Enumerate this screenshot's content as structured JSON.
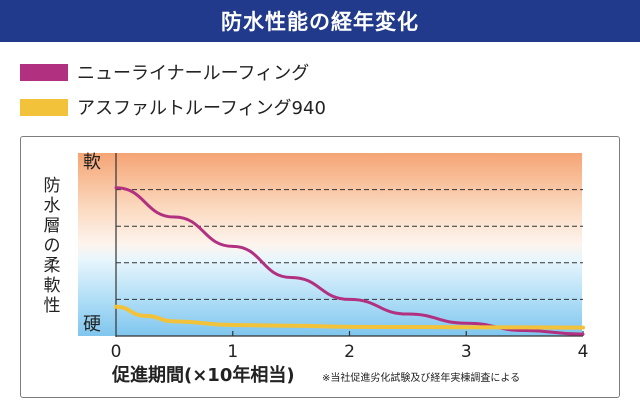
{
  "header": {
    "title": "防水性能の経年変化"
  },
  "chart_data": {
    "type": "line",
    "title": "防水性能の経年変化",
    "series": [
      {
        "name": "ニューライナールーフィング",
        "color": "#b23080",
        "x": [
          0,
          0.5,
          1,
          1.5,
          2,
          2.5,
          3,
          3.5,
          4
        ],
        "y": [
          4.05,
          3.25,
          2.45,
          1.6,
          1.0,
          0.6,
          0.35,
          0.15,
          0.05
        ]
      },
      {
        "name": "アスファルトルーフィング940",
        "color": "#f2c23a",
        "x": [
          0,
          0.25,
          0.5,
          1,
          1.5,
          2,
          3,
          4
        ],
        "y": [
          0.8,
          0.55,
          0.4,
          0.3,
          0.28,
          0.25,
          0.24,
          0.23
        ]
      }
    ],
    "xlabel": "促進期間(×10年相当)",
    "xticks": [
      "0",
      "1",
      "2",
      "3",
      "4"
    ],
    "xlim": [
      0,
      4
    ],
    "ylabel": "防水層の柔軟性",
    "ylabel_chars": [
      "防",
      "水",
      "層",
      "の",
      "柔",
      "軟",
      "性"
    ],
    "y_top_label": "軟",
    "y_bottom_label": "硬",
    "ylim": [
      0,
      5
    ],
    "grid_y": [
      1,
      2,
      3,
      4
    ],
    "footnote": "※当社促進劣化試験及び経年実棟調査による"
  }
}
